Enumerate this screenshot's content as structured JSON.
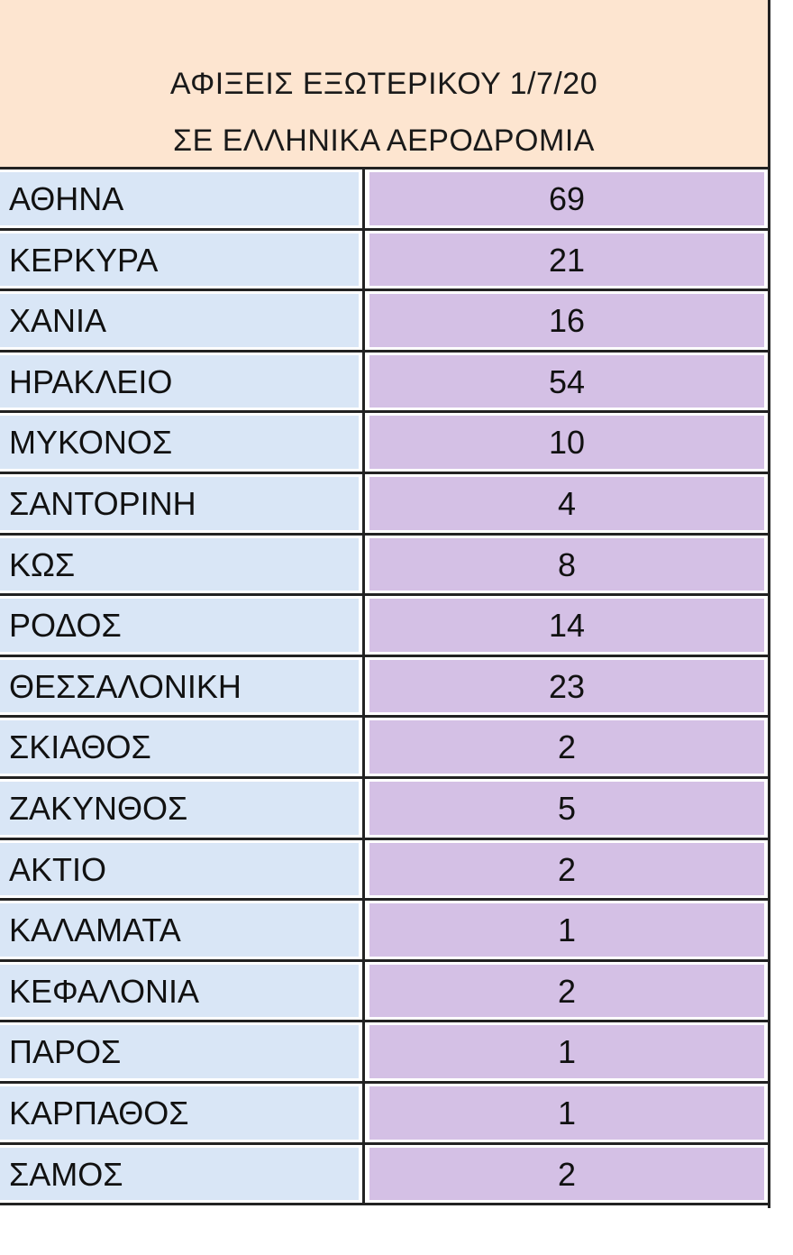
{
  "header": {
    "line1": "ΑΦΙΞΕΙΣ ΕΞΩΤΕΡΙΚΟΥ 1/7/20",
    "line2": "ΣΕ ΕΛΛΗΝΙΚΑ ΑΕΡΟΔΡΟΜΙΑ"
  },
  "colors": {
    "header_bg": "#fde5d0",
    "name_bg": "#d9e6f6",
    "value_bg": "#d4c0e5"
  },
  "rows": [
    {
      "airport": "ΑΘΗΝΑ",
      "arrivals": "69"
    },
    {
      "airport": "ΚΕΡΚΥΡΑ",
      "arrivals": "21"
    },
    {
      "airport": "ΧΑΝΙΑ",
      "arrivals": "16"
    },
    {
      "airport": "ΗΡΑΚΛΕΙΟ",
      "arrivals": "54"
    },
    {
      "airport": "ΜΥΚΟΝΟΣ",
      "arrivals": "10"
    },
    {
      "airport": "ΣΑΝΤΟΡΙΝΗ",
      "arrivals": "4"
    },
    {
      "airport": "ΚΩΣ",
      "arrivals": "8"
    },
    {
      "airport": "ΡΟΔΟΣ",
      "arrivals": "14"
    },
    {
      "airport": "ΘΕΣΣΑΛΟΝΙΚΗ",
      "arrivals": "23"
    },
    {
      "airport": "ΣΚΙΑΘΟΣ",
      "arrivals": "2"
    },
    {
      "airport": "ΖΑΚΥΝΘΟΣ",
      "arrivals": "5"
    },
    {
      "airport": "ΑΚΤΙΟ",
      "arrivals": "2"
    },
    {
      "airport": "ΚΑΛΑΜΑΤΑ",
      "arrivals": "1"
    },
    {
      "airport": "ΚΕΦΑΛΟΝΙΑ",
      "arrivals": "2"
    },
    {
      "airport": "ΠΑΡΟΣ",
      "arrivals": "1"
    },
    {
      "airport": "ΚΑΡΠΑΘΟΣ",
      "arrivals": "1"
    },
    {
      "airport": "ΣΑΜΟΣ",
      "arrivals": "2"
    }
  ]
}
